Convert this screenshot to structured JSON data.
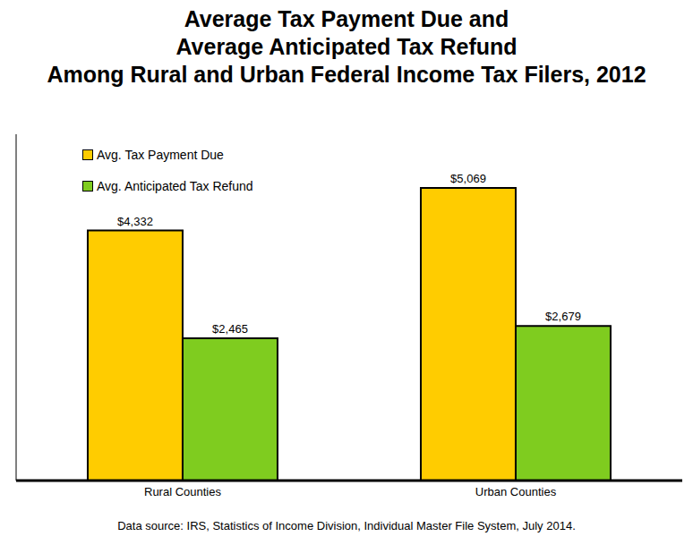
{
  "chart_data": {
    "type": "bar",
    "title": "Average Tax Payment Due and\nAverage Anticipated Tax Refund\nAmong Rural and Urban Federal Income Tax Filers, 2012",
    "annotations": [
      "Data source: IRS, Statistics of Income Division, Individual Master File System, July 2014."
    ],
    "categories": [
      "Rural Counties",
      "Urban Counties"
    ],
    "series": [
      {
        "name": "Avg. Tax Payment Due",
        "color": "#ffcc00",
        "values": [
          4332,
          5069
        ],
        "value_labels": [
          "$4,332",
          "$5,069"
        ]
      },
      {
        "name": "Avg. Anticipated Tax Refund",
        "color": "#7fcc1f",
        "values": [
          2465,
          2679
        ],
        "value_labels": [
          "$2,465",
          "$2,679"
        ]
      }
    ],
    "ylim": [
      0,
      6000
    ],
    "tick_labels": "x",
    "data_labels": true,
    "legend": "upper left",
    "grid": false
  }
}
